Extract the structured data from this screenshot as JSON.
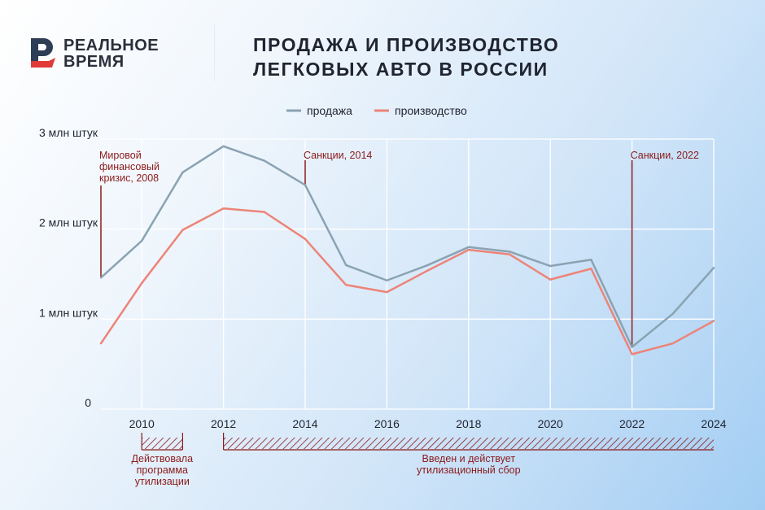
{
  "logo": {
    "line1": "РЕАЛЬНОЕ",
    "line2": "ВРЕМЯ"
  },
  "title": {
    "line1": "ПРОДАЖА И ПРОИЗВОДСТВО",
    "line2": "ЛЕГКОВЫХ АВТО В РОССИИ"
  },
  "colors": {
    "sales": "#8aa3b2",
    "production": "#ec8478",
    "annotation": "#8b1a1a"
  },
  "chart_data": {
    "type": "line",
    "title": "ПРОДАЖА И ПРОИЗВОДСТВО ЛЕГКОВЫХ АВТО В РОССИИ",
    "x": [
      2009,
      2010,
      2011,
      2012,
      2013,
      2014,
      2015,
      2016,
      2017,
      2018,
      2019,
      2020,
      2021,
      2022,
      2023,
      2024
    ],
    "series": [
      {
        "name": "продажа",
        "values": [
          1.46,
          1.87,
          2.63,
          2.92,
          2.76,
          2.49,
          1.6,
          1.43,
          1.6,
          1.8,
          1.75,
          1.59,
          1.66,
          0.69,
          1.06,
          1.57
        ]
      },
      {
        "name": "производство",
        "values": [
          0.73,
          1.4,
          1.99,
          2.23,
          2.19,
          1.89,
          1.38,
          1.3,
          1.54,
          1.77,
          1.72,
          1.44,
          1.56,
          0.61,
          0.73,
          0.98
        ]
      }
    ],
    "xlim": [
      2009,
      2024
    ],
    "ylim": [
      0,
      3
    ],
    "xticks": [
      "2010",
      "2012",
      "2014",
      "2016",
      "2018",
      "2020",
      "2022",
      "2024"
    ],
    "yticks": [
      "0",
      "1 млн штук",
      "2 млн штук",
      "3 млн штук"
    ],
    "legend_position": "top-center",
    "grid": true,
    "annotations": [
      {
        "year": 2009,
        "lines": [
          "Мировой",
          "финансовый",
          "кризис, 2008"
        ]
      },
      {
        "year": 2014,
        "lines": [
          "Санкции, 2014"
        ]
      },
      {
        "year": 2022,
        "lines": [
          "Санкции, 2022"
        ]
      }
    ],
    "periods": [
      {
        "from": 2010,
        "to": 2011,
        "lines": [
          "Действовала",
          "программа",
          "утилизации"
        ]
      },
      {
        "from": 2012,
        "to": 2024,
        "lines": [
          "Введен и действует",
          "утилизационный сбор"
        ]
      }
    ]
  }
}
